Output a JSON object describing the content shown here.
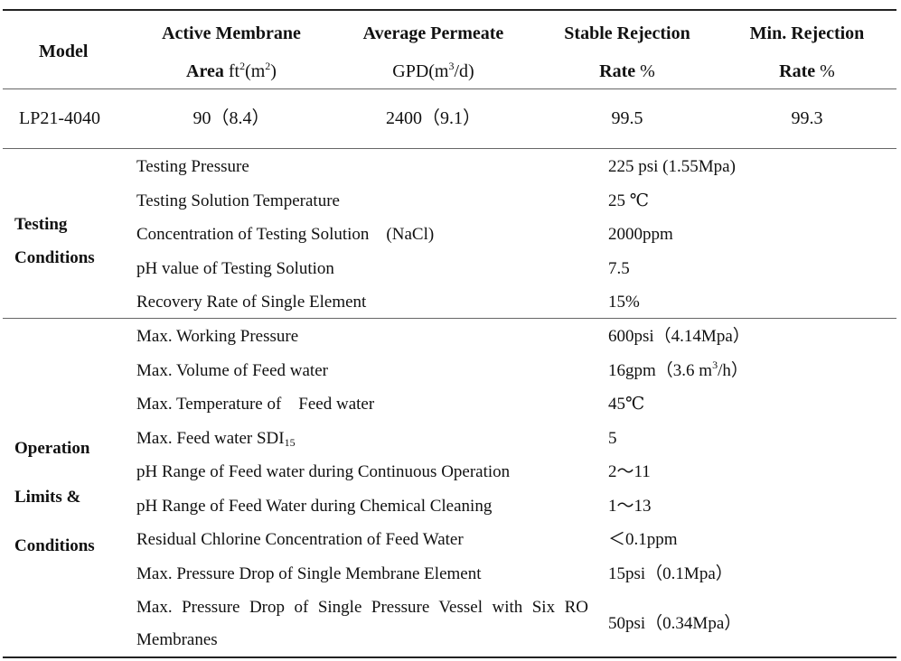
{
  "header": {
    "model": "Model",
    "area_line1": "Active Membrane",
    "area_prefix": "Area",
    "area_unit_a": " ft",
    "area_sup_a": "2",
    "area_unit_b": "(m",
    "area_sup_b": "2",
    "area_unit_c": ")",
    "permeate_line1": "Average Permeate",
    "permeate_unit_a": "GPD(m",
    "permeate_sup": "3",
    "permeate_unit_b": "/d)",
    "stable_line1": "Stable Rejection",
    "stable_line2_bold": "Rate",
    "stable_line2_pct": " %",
    "min_line1": "Min. Rejection",
    "min_line2_bold": "Rate",
    "min_line2_pct": " %"
  },
  "product": {
    "model": "LP21-4040",
    "area": "90（8.4）",
    "permeate": "2400（9.1）",
    "stable_rejection": "99.5",
    "min_rejection": "99.3"
  },
  "testing": {
    "section_line1": "Testing",
    "section_line2": "Conditions",
    "rows": [
      {
        "label": "Testing Pressure",
        "value": "225 psi (1.55Mpa)"
      },
      {
        "label": "Testing Solution Temperature",
        "value": "25 ℃"
      },
      {
        "label": "Concentration of Testing Solution　(NaCl)",
        "value": "2000ppm"
      },
      {
        "label": "pH value of Testing Solution",
        "value": "7.5"
      },
      {
        "label": "Recovery Rate of Single Element",
        "value": "15%"
      }
    ]
  },
  "operation": {
    "section_line1": "Operation",
    "section_line2": "Limits &",
    "section_line3": "Conditions",
    "rows": [
      {
        "label": "Max. Working Pressure",
        "value": "600psi（4.14Mpa）"
      },
      {
        "label": "Max. Volume of Feed water",
        "value_a": "16gpm（3.6 m",
        "value_sup": "3",
        "value_b": "/h）"
      },
      {
        "label": "Max. Temperature of　Feed water",
        "value": "45℃"
      },
      {
        "label_a": "Max. Feed water SDI",
        "label_sub": "15",
        "value": "5"
      },
      {
        "label": "pH Range of Feed water during Continuous Operation",
        "value": "2～11"
      },
      {
        "label": "pH Range of Feed Water during Chemical Cleaning",
        "value": "1～13"
      },
      {
        "label": "Residual Chlorine Concentration of Feed Water",
        "value": "＜0.1ppm"
      },
      {
        "label": "Max. Pressure Drop of Single Membrane Element",
        "value": "15psi（0.1Mpa）"
      },
      {
        "label": "Max. Pressure Drop of Single Pressure Vessel with Six RO Membranes",
        "value": "50psi（0.34Mpa）"
      }
    ]
  }
}
